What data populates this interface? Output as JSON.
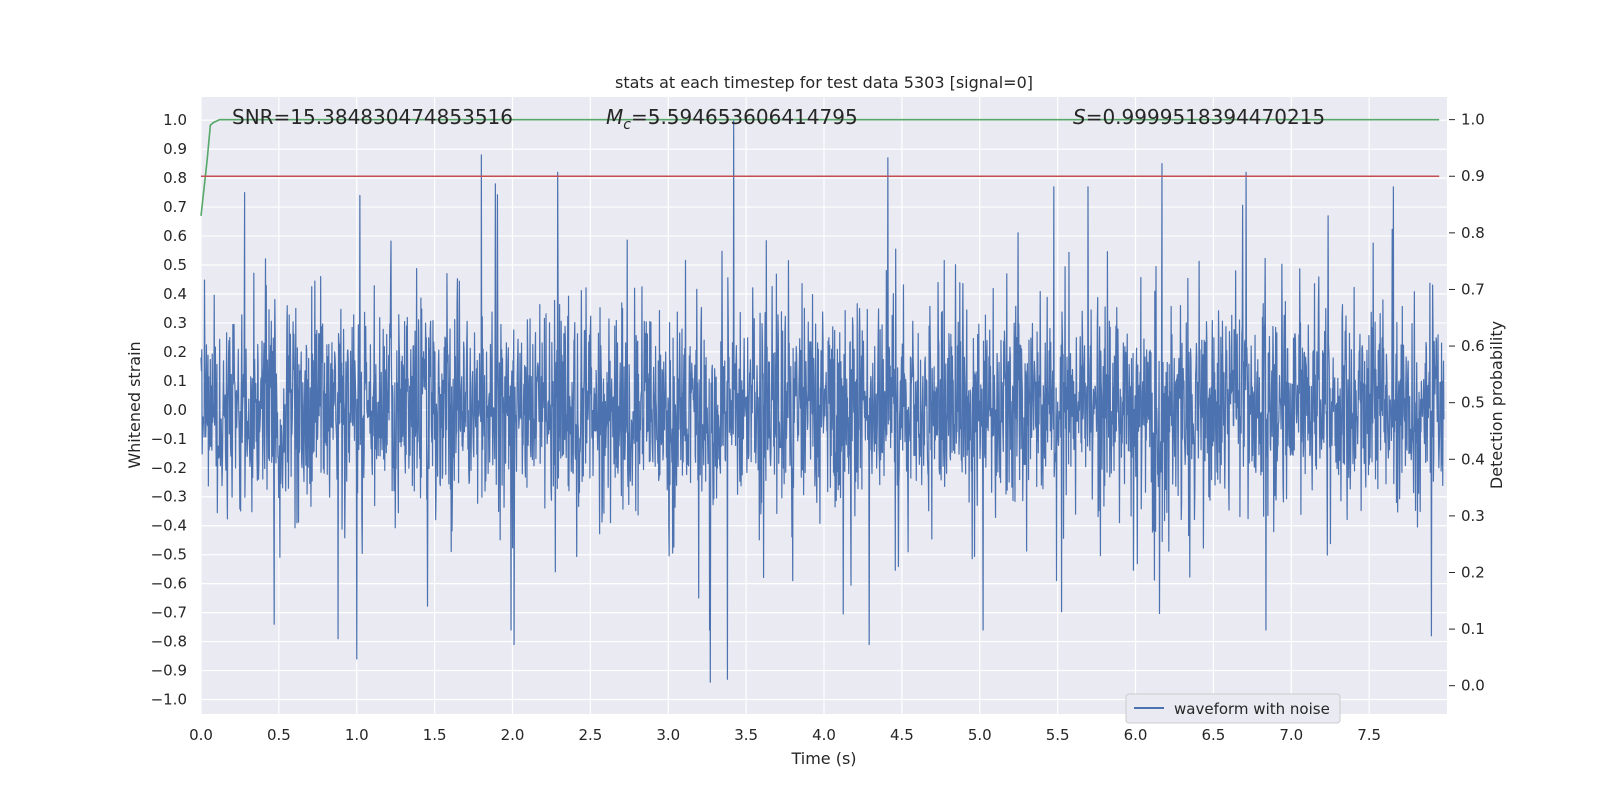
{
  "chart_data": {
    "type": "line",
    "title": "stats at each timestep for test data 5303 [signal=0]",
    "xlabel": "Time (s)",
    "ylabel": "Whitened strain",
    "ylabel_right": "Detection probability",
    "xlim": [
      0.0,
      8.0
    ],
    "ylim": [
      -1.05,
      1.08
    ],
    "ylim_right": [
      -0.05,
      1.04
    ],
    "xticks": [
      "0.0",
      "0.5",
      "1.0",
      "1.5",
      "2.0",
      "2.5",
      "3.0",
      "3.5",
      "4.0",
      "4.5",
      "5.0",
      "5.5",
      "6.0",
      "6.5",
      "7.0",
      "7.5"
    ],
    "yticks": [
      "1.0",
      "0.9",
      "0.8",
      "0.7",
      "0.6",
      "0.5",
      "0.4",
      "0.3",
      "0.2",
      "0.1",
      "0.0",
      "−0.1",
      "−0.2",
      "−0.3",
      "−0.4",
      "−0.5",
      "−0.6",
      "−0.7",
      "−0.8",
      "−0.9",
      "−1.0"
    ],
    "yticks_right": [
      "1.0",
      "0.9",
      "0.8",
      "0.7",
      "0.6",
      "0.5",
      "0.4",
      "0.3",
      "0.2",
      "0.1",
      "0.0"
    ],
    "grid": true,
    "legend_position": "lower-right",
    "annotations": {
      "snr": "SNR=15.384830474853516",
      "mc": "=5.594653606414795",
      "mc_symbol": "M",
      "mc_sub": "c",
      "s": "=0.9999518394470215",
      "s_symbol": "S"
    },
    "series": [
      {
        "name": "waveform with noise",
        "color": "#4c72b0",
        "description": "dense noisy strain signal (approx. 4096 samples/s)",
        "peaks": [
          {
            "x": 1.8,
            "y": 0.88
          },
          {
            "x": 3.42,
            "y": 1.0
          },
          {
            "x": 4.41,
            "y": 0.87
          },
          {
            "x": 6.17,
            "y": 0.85
          },
          {
            "x": 6.71,
            "y": 0.82
          },
          {
            "x": 2.29,
            "y": 0.82
          },
          {
            "x": 1.89,
            "y": 0.78
          },
          {
            "x": 0.28,
            "y": 0.75
          },
          {
            "x": 1.02,
            "y": 0.74
          },
          {
            "x": 3.27,
            "y": -0.94
          },
          {
            "x": 3.38,
            "y": -0.93
          },
          {
            "x": 4.29,
            "y": -0.81
          },
          {
            "x": 2.01,
            "y": -0.81
          },
          {
            "x": 1.0,
            "y": -0.86
          },
          {
            "x": 0.88,
            "y": -0.79
          },
          {
            "x": 0.47,
            "y": -0.74
          },
          {
            "x": 7.9,
            "y": -0.78
          }
        ]
      },
      {
        "name": "",
        "color": "#55a868",
        "axis": "right",
        "x": [
          0.0,
          0.02,
          0.04,
          0.06,
          0.08,
          0.12,
          0.2,
          1.0,
          2.0,
          3.0,
          4.0,
          5.0,
          6.0,
          7.0,
          7.95
        ],
        "values": [
          0.83,
          0.88,
          0.93,
          0.99,
          0.995,
          1.0,
          1.0,
          1.0,
          1.0,
          1.0,
          1.0,
          1.0,
          1.0,
          1.0,
          1.0
        ]
      },
      {
        "name": "",
        "color": "#c44e52",
        "axis": "right",
        "x": [
          0.0,
          7.95
        ],
        "values": [
          0.9,
          0.9
        ]
      }
    ]
  }
}
